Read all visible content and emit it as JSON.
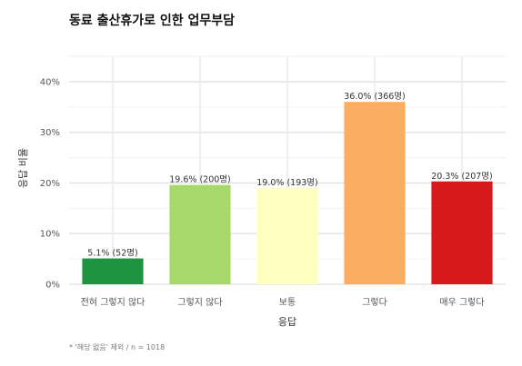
{
  "chart_data": {
    "type": "bar",
    "title": "동료 출산휴가로 인한 업무부담",
    "xlabel": "응답",
    "ylabel": "응답 비율",
    "categories": [
      "전혀 그렇지 않다",
      "그렇지 않다",
      "보통",
      "그렇다",
      "매우 그렇다"
    ],
    "values": [
      5.1,
      19.6,
      19.0,
      36.0,
      20.3
    ],
    "counts": [
      52,
      200,
      193,
      366,
      207
    ],
    "data_labels": [
      "5.1% (52명)",
      "19.6% (200명)",
      "19.0% (193명)",
      "36.0% (366명)",
      "20.3% (207명)"
    ],
    "colors": [
      "#1e9440",
      "#a7d86b",
      "#ffffbf",
      "#fbae61",
      "#d7191c"
    ],
    "ylim": [
      0,
      45
    ],
    "yticks": [
      0,
      10,
      20,
      30,
      40
    ],
    "ytick_labels": [
      "0%",
      "10%",
      "20%",
      "30%",
      "40%"
    ],
    "grid": true,
    "legend": "none",
    "caption": "* '해당 없음' 제외 / n = 1018"
  }
}
